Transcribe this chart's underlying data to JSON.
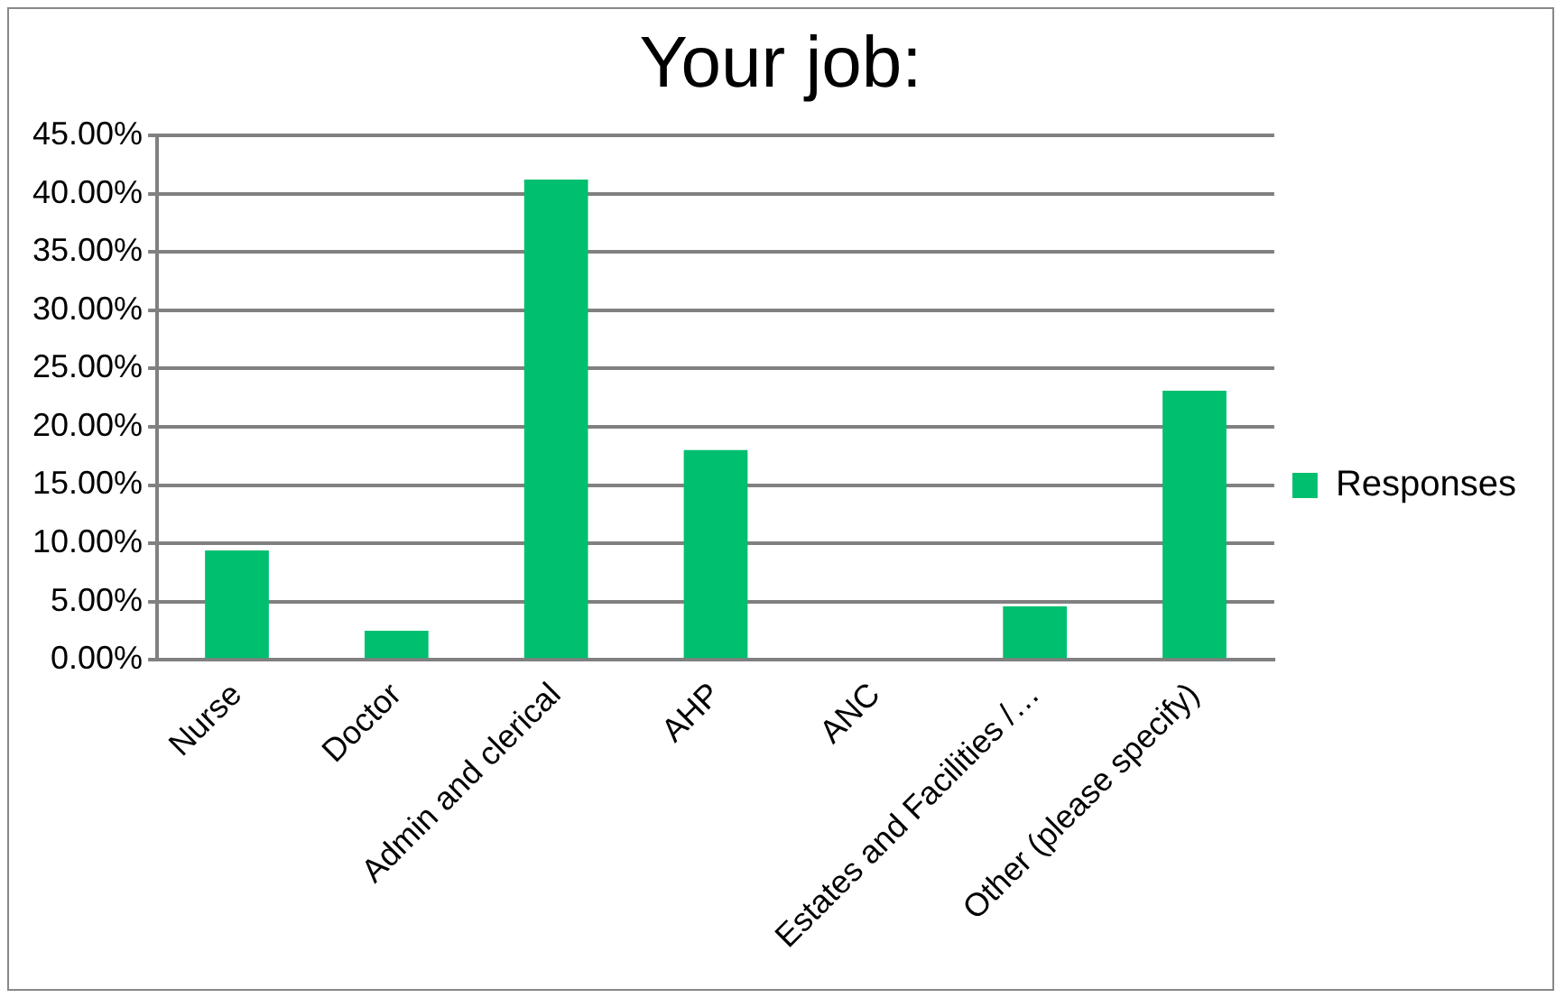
{
  "chart_data": {
    "type": "bar",
    "title": "Your job:",
    "categories": [
      "Nurse",
      "Doctor",
      "Admin and clerical",
      "AHP",
      "ANC",
      "Estates and Facilities /…",
      "Other (please specify)"
    ],
    "series": [
      {
        "name": "Responses",
        "color": "#00bf6f",
        "values": [
          9.4,
          2.5,
          41.2,
          18.0,
          0,
          4.6,
          23.1
        ]
      }
    ],
    "ylim": [
      0,
      45
    ],
    "yticks": [
      {
        "value": 0,
        "label": "0.00%"
      },
      {
        "value": 5,
        "label": "5.00%"
      },
      {
        "value": 10,
        "label": "10.00%"
      },
      {
        "value": 15,
        "label": "15.00%"
      },
      {
        "value": 20,
        "label": "20.00%"
      },
      {
        "value": 25,
        "label": "25.00%"
      },
      {
        "value": 30,
        "label": "30.00%"
      },
      {
        "value": 35,
        "label": "35.00%"
      },
      {
        "value": 40,
        "label": "40.00%"
      },
      {
        "value": 45,
        "label": "45.00%"
      }
    ],
    "grid": "y",
    "legend": "right"
  }
}
